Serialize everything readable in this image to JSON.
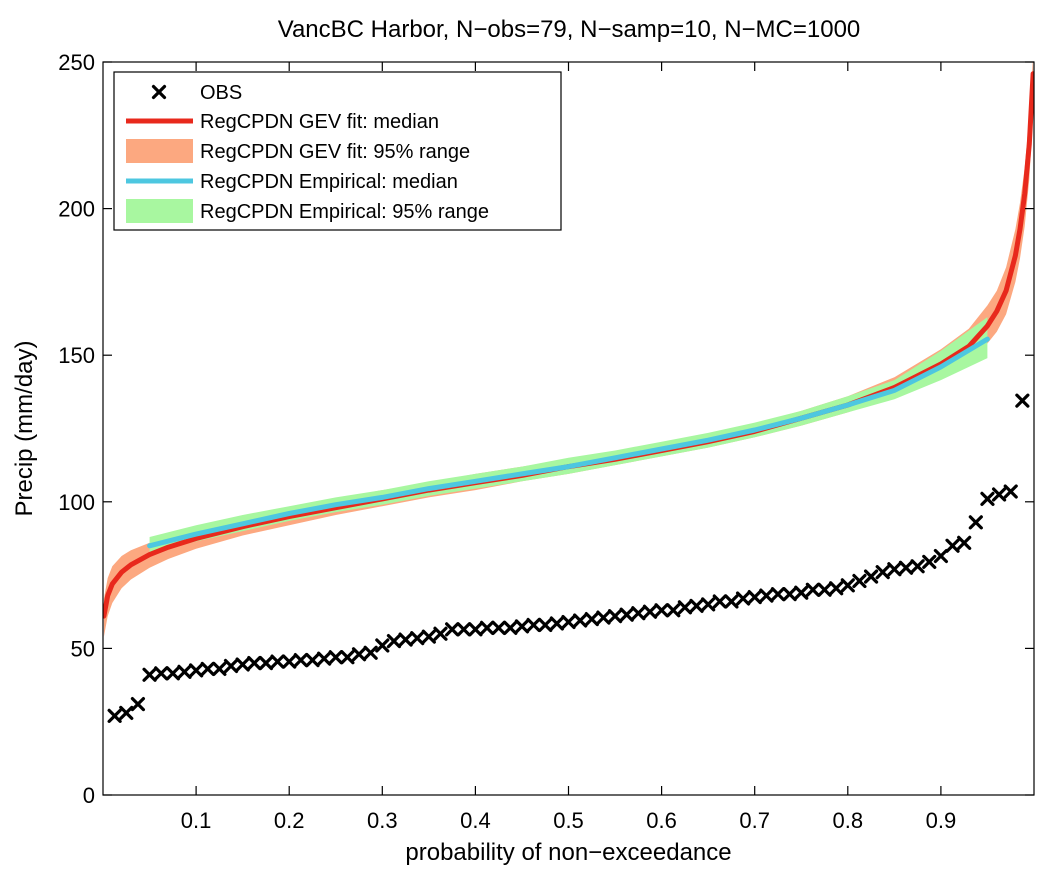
{
  "chart_data": {
    "type": "line",
    "title": "VancBC Harbor, N−obs=79, N−samp=10, N−MC=1000",
    "xlabel": "probability of non−exceedance",
    "ylabel": "Precip (mm/day)",
    "xlim": [
      0,
      1
    ],
    "ylim": [
      0,
      250
    ],
    "xticks": [
      0.1,
      0.2,
      0.3,
      0.4,
      0.5,
      0.6,
      0.7,
      0.8,
      0.9
    ],
    "xtick_labels": [
      "0.1",
      "0.2",
      "0.3",
      "0.4",
      "0.5",
      "0.6",
      "0.7",
      "0.8",
      "0.9"
    ],
    "yticks": [
      0,
      50,
      100,
      150,
      200,
      250
    ],
    "ytick_labels": [
      "0",
      "50",
      "100",
      "150",
      "200",
      "250"
    ],
    "grid": false,
    "legend_position": "top-left",
    "series": [
      {
        "name": "OBS",
        "kind": "marker",
        "color": "#000000",
        "x": [
          0.0125,
          0.025,
          0.0375,
          0.05,
          0.0625,
          0.075,
          0.0875,
          0.1,
          0.1125,
          0.125,
          0.1375,
          0.15,
          0.1625,
          0.175,
          0.1875,
          0.2,
          0.2125,
          0.225,
          0.2375,
          0.25,
          0.2625,
          0.275,
          0.2875,
          0.3,
          0.3125,
          0.325,
          0.3375,
          0.35,
          0.3625,
          0.375,
          0.3875,
          0.4,
          0.4125,
          0.425,
          0.4375,
          0.45,
          0.4625,
          0.475,
          0.4875,
          0.5,
          0.5125,
          0.525,
          0.5375,
          0.55,
          0.5625,
          0.575,
          0.5875,
          0.6,
          0.6125,
          0.625,
          0.6375,
          0.65,
          0.6625,
          0.675,
          0.6875,
          0.7,
          0.7125,
          0.725,
          0.7375,
          0.75,
          0.7625,
          0.775,
          0.7875,
          0.8,
          0.8125,
          0.825,
          0.8375,
          0.85,
          0.8625,
          0.875,
          0.8875,
          0.9,
          0.9125,
          0.925,
          0.9375,
          0.95,
          0.9625,
          0.975,
          0.9875
        ],
        "y": [
          27,
          28,
          31,
          41,
          41.5,
          41.5,
          42,
          42.5,
          43,
          43,
          44,
          44.5,
          45,
          45,
          45.5,
          45.5,
          46,
          46,
          46.5,
          47,
          47,
          48,
          48.5,
          51,
          52.5,
          53,
          53.5,
          54,
          55,
          56.5,
          56.5,
          56.5,
          57,
          57,
          57,
          57.5,
          58,
          58,
          58.5,
          59,
          59.5,
          60,
          60.5,
          61,
          61.5,
          62,
          62.5,
          63,
          63,
          64,
          64.5,
          65,
          66,
          66,
          67,
          67.5,
          68,
          68.5,
          68.5,
          69,
          70,
          70,
          70.5,
          71.5,
          73,
          74.5,
          76,
          77,
          77.5,
          78,
          79.5,
          81.5,
          85,
          86,
          93,
          101,
          102.5,
          103.5,
          134.5
        ]
      },
      {
        "name": "RegCPDN GEV fit: median",
        "kind": "line",
        "color": "#e8291c",
        "x": [
          0.001,
          0.005,
          0.01,
          0.02,
          0.03,
          0.05,
          0.07,
          0.1,
          0.15,
          0.2,
          0.25,
          0.3,
          0.35,
          0.4,
          0.45,
          0.5,
          0.55,
          0.6,
          0.65,
          0.7,
          0.75,
          0.8,
          0.85,
          0.9,
          0.93,
          0.95,
          0.96,
          0.97,
          0.98,
          0.985,
          0.99,
          0.995,
          0.999
        ],
        "y": [
          61,
          68,
          72,
          76,
          78.5,
          82,
          84.5,
          87.5,
          91.5,
          95,
          98,
          101,
          104,
          106.5,
          109,
          112,
          114.5,
          117.5,
          120.5,
          124,
          128.5,
          133,
          139,
          147,
          153,
          160,
          165,
          172,
          184,
          193,
          205,
          222,
          246
        ]
      },
      {
        "name": "RegCPDN GEV fit: 95% range",
        "kind": "band",
        "color": "#fca880",
        "x": [
          0.001,
          0.005,
          0.01,
          0.02,
          0.03,
          0.05,
          0.07,
          0.1,
          0.15,
          0.2,
          0.25,
          0.3,
          0.35,
          0.4,
          0.45,
          0.5,
          0.55,
          0.6,
          0.65,
          0.7,
          0.75,
          0.8,
          0.85,
          0.9,
          0.93,
          0.95,
          0.96,
          0.97,
          0.98,
          0.985,
          0.99,
          0.995,
          0.999
        ],
        "lower": [
          54,
          61,
          65.5,
          70.5,
          73.5,
          77.5,
          80.5,
          84,
          88.5,
          92,
          95.5,
          98.5,
          101.5,
          104,
          107,
          109.5,
          112.5,
          115.5,
          118.5,
          122,
          126,
          130.5,
          136,
          143,
          148,
          154,
          158,
          164,
          175,
          183,
          194,
          210,
          232
        ],
        "upper": [
          67,
          74,
          78,
          81.5,
          83.5,
          86,
          88.5,
          91,
          94.5,
          98,
          101,
          104,
          106.5,
          109.5,
          112,
          114.5,
          117,
          120,
          123,
          126.5,
          131,
          136,
          142.5,
          152,
          159,
          167,
          172,
          180,
          193,
          202,
          214,
          232,
          252
        ]
      },
      {
        "name": "RegCPDN Empirical: median",
        "kind": "line",
        "color": "#4dc7e0",
        "x": [
          0.05,
          0.075,
          0.1,
          0.15,
          0.2,
          0.25,
          0.3,
          0.35,
          0.4,
          0.45,
          0.5,
          0.55,
          0.6,
          0.65,
          0.7,
          0.75,
          0.8,
          0.85,
          0.9,
          0.95
        ],
        "y": [
          85,
          87,
          89,
          92.5,
          96,
          99,
          101.5,
          104.5,
          107,
          109.5,
          112,
          115,
          118,
          121,
          124.5,
          128.5,
          133,
          138,
          146,
          155.5
        ]
      },
      {
        "name": "RegCPDN Empirical: 95% range",
        "kind": "band",
        "color": "#a8f7a0",
        "x": [
          0.05,
          0.075,
          0.1,
          0.15,
          0.2,
          0.25,
          0.3,
          0.35,
          0.4,
          0.45,
          0.5,
          0.55,
          0.6,
          0.65,
          0.7,
          0.75,
          0.8,
          0.85,
          0.9,
          0.95
        ],
        "lower": [
          82.5,
          84.5,
          86.5,
          90,
          93.5,
          96.5,
          99,
          102,
          104.5,
          107,
          109.5,
          112.5,
          115.5,
          118.5,
          122,
          126,
          130.5,
          135,
          141.5,
          149
        ],
        "upper": [
          88,
          90,
          92,
          95.5,
          98.5,
          101.5,
          104,
          107,
          109.5,
          112,
          115,
          117.5,
          120.5,
          123.5,
          127,
          131,
          136,
          141.5,
          151.5,
          163
        ]
      }
    ]
  }
}
